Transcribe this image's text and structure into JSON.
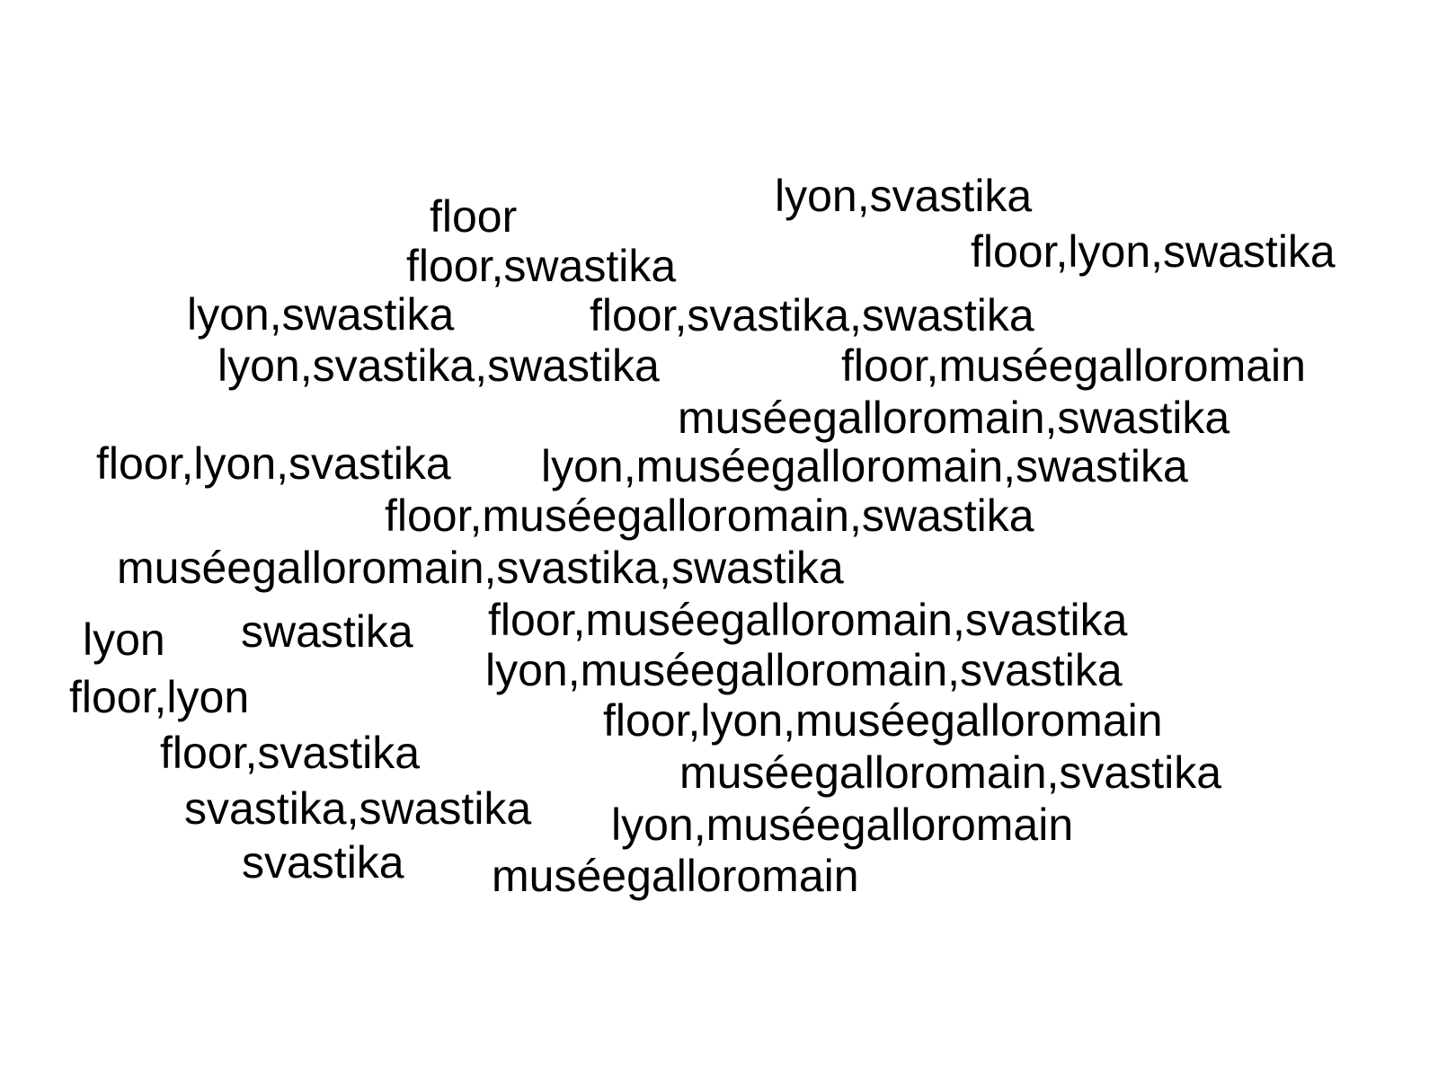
{
  "text_color": "#000000",
  "background_color": "#ffffff",
  "words": [
    {
      "text": "lyon,svastika"
    },
    {
      "text": "floor"
    },
    {
      "text": "floor,lyon,swastika"
    },
    {
      "text": "floor,swastika"
    },
    {
      "text": "lyon,swastika"
    },
    {
      "text": "floor,svastika,swastika"
    },
    {
      "text": "lyon,svastika,swastika"
    },
    {
      "text": "floor,muséegalloromain"
    },
    {
      "text": "muséegalloromain,swastika"
    },
    {
      "text": "floor,lyon,svastika"
    },
    {
      "text": "lyon,muséegalloromain,swastika"
    },
    {
      "text": "floor,muséegalloromain,swastika"
    },
    {
      "text": "muséegalloromain,svastika,swastika"
    },
    {
      "text": "floor,muséegalloromain,svastika"
    },
    {
      "text": "lyon"
    },
    {
      "text": "swastika"
    },
    {
      "text": "lyon,muséegalloromain,svastika"
    },
    {
      "text": "floor,lyon"
    },
    {
      "text": "floor,lyon,muséegalloromain"
    },
    {
      "text": "floor,svastika"
    },
    {
      "text": "muséegalloromain,svastika"
    },
    {
      "text": "svastika,swastika"
    },
    {
      "text": "lyon,muséegalloromain"
    },
    {
      "text": "svastika"
    },
    {
      "text": "muséegalloromain"
    }
  ]
}
